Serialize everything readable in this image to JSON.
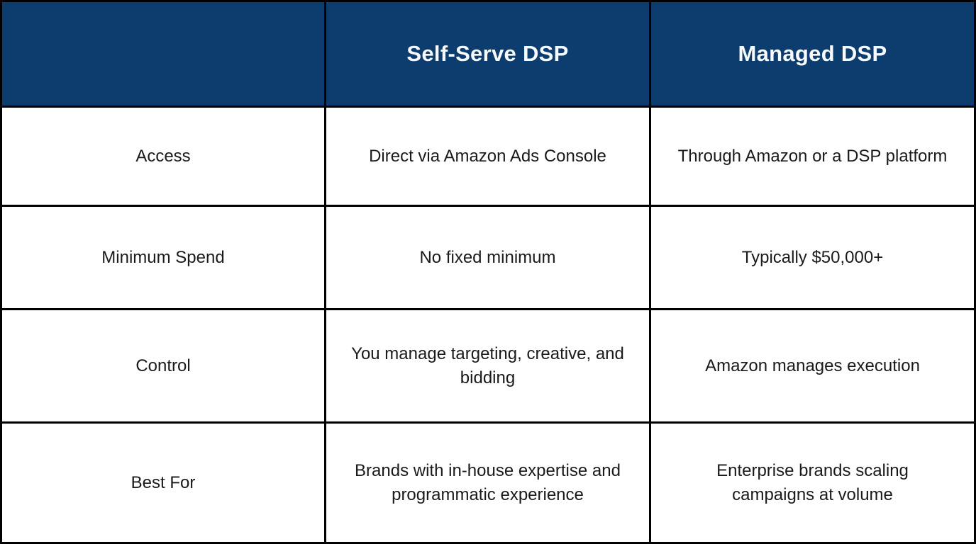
{
  "table": {
    "header": {
      "corner": "",
      "self_serve": "Self-Serve DSP",
      "managed": "Managed DSP"
    },
    "rows": [
      {
        "label": "Access",
        "self_serve": "Direct via Amazon Ads Console",
        "managed": "Through Amazon or a DSP platform"
      },
      {
        "label": "Minimum Spend",
        "self_serve": "No fixed minimum",
        "managed": "Typically $50,000+"
      },
      {
        "label": "Control",
        "self_serve": "You manage targeting, creative, and\nbidding",
        "managed": "Amazon manages execution"
      },
      {
        "label": "Best For",
        "self_serve": "Brands with in-house expertise and\nprogrammatic experience",
        "managed": "Enterprise brands scaling\ncampaigns at volume"
      }
    ],
    "colors": {
      "header_bg": "#0d3c6e",
      "header_text": "#f7fbff",
      "border": "#000000",
      "cell_bg": "#ffffff",
      "body_text": "#1a1a1a"
    }
  },
  "chart_data": {
    "type": "table",
    "title": "",
    "columns": [
      "",
      "Self-Serve DSP",
      "Managed DSP"
    ],
    "rows": [
      [
        "Access",
        "Direct via Amazon Ads Console",
        "Through Amazon or a DSP platform"
      ],
      [
        "Minimum Spend",
        "No fixed minimum",
        "Typically $50,000+"
      ],
      [
        "Control",
        "You manage targeting, creative, and bidding",
        "Amazon manages execution"
      ],
      [
        "Best For",
        "Brands with in-house expertise and programmatic experience",
        "Enterprise brands scaling campaigns at volume"
      ]
    ],
    "layout": {
      "header_row_filled": true,
      "grid": true,
      "legend_position": "none"
    }
  }
}
